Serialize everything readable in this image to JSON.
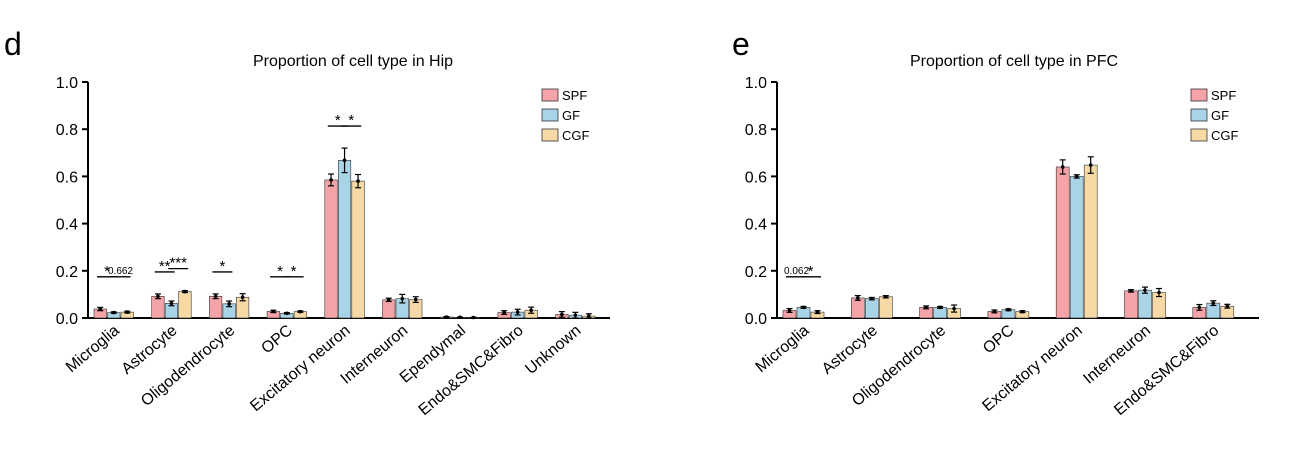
{
  "chart_data": [
    {
      "panel_label": "d",
      "type": "bar",
      "title": "Proportion of cell type in Hip",
      "xlabel": "",
      "ylabel": "",
      "ylim": [
        0,
        1.0
      ],
      "yticks": [
        "0.0",
        "0.2",
        "0.4",
        "0.6",
        "0.8",
        "1.0"
      ],
      "grid": false,
      "legend_position": "top-right",
      "categories": [
        "Microglia",
        "Astrocyte",
        "Oligodendrocyte",
        "OPC",
        "Excitatory neuron",
        "Interneuron",
        "Ependymal",
        "Endo&SMC&Fibro",
        "Unknown"
      ],
      "series": [
        {
          "name": "SPF",
          "color": "#f4a3a8",
          "values": [
            0.038,
            0.092,
            0.092,
            0.028,
            0.585,
            0.077,
            0.004,
            0.023,
            0.015
          ],
          "errors": [
            0.007,
            0.01,
            0.01,
            0.005,
            0.025,
            0.007,
            0.002,
            0.008,
            0.012
          ]
        },
        {
          "name": "GF",
          "color": "#a9d3e6",
          "values": [
            0.023,
            0.062,
            0.06,
            0.02,
            0.668,
            0.082,
            0.003,
            0.025,
            0.012
          ],
          "errors": [
            0.003,
            0.01,
            0.012,
            0.003,
            0.052,
            0.018,
            0.001,
            0.012,
            0.012
          ]
        },
        {
          "name": "CGF",
          "color": "#f7d9a6",
          "values": [
            0.025,
            0.112,
            0.088,
            0.027,
            0.58,
            0.078,
            0.002,
            0.033,
            0.008
          ],
          "errors": [
            0.004,
            0.004,
            0.015,
            0.003,
            0.028,
            0.012,
            0.001,
            0.013,
            0.01
          ]
        }
      ],
      "annotations": [
        {
          "category": 0,
          "pair": [
            0,
            1
          ],
          "label": "*"
        },
        {
          "category": 0,
          "pair": [
            1,
            2
          ],
          "label": "0.662"
        },
        {
          "category": 1,
          "pair": [
            0,
            1
          ],
          "label": "**"
        },
        {
          "category": 1,
          "pair": [
            1,
            2
          ],
          "label": "***"
        },
        {
          "category": 2,
          "pair": [
            0,
            1
          ],
          "label": "*"
        },
        {
          "category": 3,
          "pair": [
            0,
            1
          ],
          "label": "*"
        },
        {
          "category": 3,
          "pair": [
            1,
            2
          ],
          "label": "*"
        },
        {
          "category": 4,
          "pair": [
            0,
            1
          ],
          "label": "*"
        },
        {
          "category": 4,
          "pair": [
            1,
            2
          ],
          "label": "*"
        }
      ]
    },
    {
      "panel_label": "e",
      "type": "bar",
      "title": "Proportion of cell type in PFC",
      "xlabel": "",
      "ylabel": "",
      "ylim": [
        0,
        1.0
      ],
      "yticks": [
        "0.0",
        "0.2",
        "0.4",
        "0.6",
        "0.8",
        "1.0"
      ],
      "grid": false,
      "legend_position": "top-right",
      "categories": [
        "Microglia",
        "Astrocyte",
        "Oligodendrocyte",
        "OPC",
        "Excitatory neuron",
        "Interneuron",
        "Endo&SMC&Fibro"
      ],
      "series": [
        {
          "name": "SPF",
          "color": "#f4a3a8",
          "values": [
            0.032,
            0.085,
            0.045,
            0.028,
            0.64,
            0.115,
            0.045
          ],
          "errors": [
            0.008,
            0.01,
            0.006,
            0.006,
            0.03,
            0.005,
            0.012
          ]
        },
        {
          "name": "GF",
          "color": "#a9d3e6",
          "values": [
            0.045,
            0.082,
            0.045,
            0.035,
            0.6,
            0.118,
            0.063
          ],
          "errors": [
            0.004,
            0.005,
            0.004,
            0.004,
            0.007,
            0.013,
            0.01
          ]
        },
        {
          "name": "CGF",
          "color": "#f7d9a6",
          "values": [
            0.025,
            0.09,
            0.04,
            0.027,
            0.648,
            0.108,
            0.05
          ],
          "errors": [
            0.006,
            0.005,
            0.015,
            0.004,
            0.035,
            0.017,
            0.008
          ]
        }
      ],
      "annotations": [
        {
          "category": 0,
          "pair": [
            0,
            1
          ],
          "label": "0.062"
        },
        {
          "category": 0,
          "pair": [
            1,
            2
          ],
          "label": "*"
        }
      ]
    }
  ]
}
